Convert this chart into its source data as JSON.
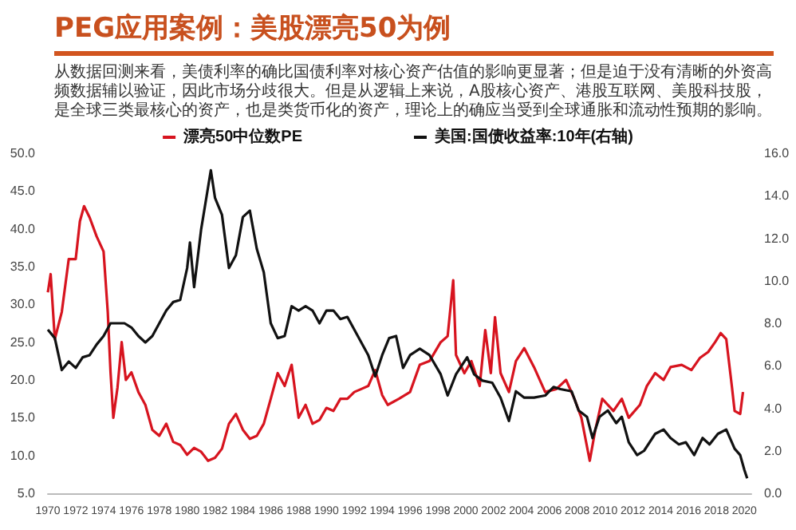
{
  "chart_data": {
    "type": "line",
    "title": "PEG应用案例：美股漂亮50为例",
    "subtitle": "从数据回测来看，美债利率的确比国债利率对核心资产估值的影响更显著；但是迫于没有清晰的外资高频数据辅以验证，因此市场分歧很大。但是从逻辑上来说，A股核心资产、港股互联网、美股科技股，是全球三类最核心的资产，也是类货币化的资产，理论上的确应当受到全球通胀和流动性预期的影响。",
    "legend": "top",
    "grid": false,
    "xlim": [
      1970,
      2020.5
    ],
    "xticks": [
      1970,
      1972,
      1974,
      1976,
      1978,
      1980,
      1982,
      1984,
      1986,
      1988,
      1990,
      1992,
      1994,
      1996,
      1998,
      2000,
      2002,
      2004,
      2006,
      2008,
      2010,
      2012,
      2014,
      2016,
      2018,
      2020
    ],
    "ylim": [
      5,
      50
    ],
    "yticks": [
      {
        "value": 5,
        "label": "5.0"
      },
      {
        "value": 10,
        "label": "10.0"
      },
      {
        "value": 15,
        "label": "15.0"
      },
      {
        "value": 20,
        "label": "20.0"
      },
      {
        "value": 25,
        "label": "25.0"
      },
      {
        "value": 30,
        "label": "30.0"
      },
      {
        "value": 35,
        "label": "35.0"
      },
      {
        "value": 40,
        "label": "40.0"
      },
      {
        "value": 45,
        "label": "45.0"
      },
      {
        "value": 50,
        "label": "50.0"
      }
    ],
    "y2lim": [
      0,
      16
    ],
    "y2ticks": [
      {
        "value": 0,
        "label": "0.0"
      },
      {
        "value": 2,
        "label": "2.0"
      },
      {
        "value": 4,
        "label": "4.0"
      },
      {
        "value": 6,
        "label": "6.0"
      },
      {
        "value": 8,
        "label": "8.0"
      },
      {
        "value": 10,
        "label": "10.0"
      },
      {
        "value": 12,
        "label": "12.0"
      },
      {
        "value": 14,
        "label": "14.0"
      },
      {
        "value": 16,
        "label": "16.0"
      }
    ],
    "series": [
      {
        "name": "漂亮50中位数PE",
        "color": "#d7141f",
        "x": [
          1970,
          1970.2,
          1970.5,
          1971,
          1971.5,
          1972,
          1972.3,
          1972.6,
          1973,
          1973.5,
          1974,
          1974.3,
          1974.5,
          1974.7,
          1975,
          1975.3,
          1975.6,
          1976,
          1976.5,
          1977,
          1977.5,
          1978,
          1978.5,
          1979,
          1979.5,
          1980,
          1980.5,
          1981,
          1981.5,
          1982,
          1982.5,
          1983,
          1983.5,
          1984,
          1984.5,
          1985,
          1985.5,
          1986,
          1986.5,
          1987,
          1987.5,
          1988,
          1988.5,
          1989,
          1989.5,
          1990,
          1990.5,
          1991,
          1991.5,
          1992,
          1992.5,
          1993,
          1993.5,
          1994,
          1994.4,
          1995.2,
          1996,
          1996.7,
          1997.4,
          1998.2,
          1998.7,
          1999.1,
          1999.3,
          1999.9,
          2000.4,
          2001,
          2001.4,
          2001.8,
          2002.1,
          2002.5,
          2003.1,
          2003.6,
          2004.2,
          2004.9,
          2005.7,
          2006.5,
          2007.2,
          2007.8,
          2008.3,
          2008.9,
          2009.3,
          2009.8,
          2010.6,
          2011.2,
          2011.7,
          2012.5,
          2013,
          2013.6,
          2014.2,
          2014.7,
          2015.5,
          2016.2,
          2016.8,
          2017.4,
          2017.9,
          2018.3,
          2018.7,
          2019.1,
          2019.3,
          2019.7,
          2019.9
        ],
        "values": [
          31.6,
          34,
          25.4,
          29,
          36,
          36,
          41,
          43,
          41.5,
          39,
          37,
          29,
          21,
          15,
          19,
          25,
          20,
          21,
          18.4,
          16.7,
          13.4,
          12.6,
          14.2,
          11.8,
          11.4,
          10.1,
          11,
          10.5,
          9.3,
          9.7,
          10.9,
          14.2,
          15.5,
          13.4,
          12.2,
          12.6,
          14.2,
          17.5,
          20.9,
          19.2,
          22,
          15,
          16.7,
          14.2,
          14.7,
          16.3,
          15.9,
          17.5,
          17.5,
          18.4,
          18.8,
          19.2,
          21.3,
          18,
          16.7,
          17.5,
          18.4,
          22,
          22.5,
          25,
          25.8,
          33.2,
          23.3,
          20.9,
          22.5,
          19.2,
          26.6,
          20.9,
          28.3,
          20.9,
          18.4,
          22.5,
          24.2,
          21.7,
          18.4,
          18.8,
          20,
          17.5,
          15,
          9.3,
          13.4,
          17.5,
          15.9,
          17.5,
          15,
          16.7,
          19.2,
          20.9,
          20,
          21.7,
          22,
          21.3,
          22.9,
          23.7,
          25,
          26.2,
          25.4,
          19.2,
          15.9,
          15.5,
          18.4
        ]
      },
      {
        "name": "美国:国债收益率:10年(右轴)",
        "color": "#111111",
        "axis": "y2",
        "x": [
          1970,
          1970.5,
          1971,
          1971.5,
          1972,
          1972.5,
          1973,
          1973.5,
          1974,
          1974.5,
          1975,
          1975.5,
          1976,
          1976.5,
          1977,
          1977.5,
          1978,
          1978.5,
          1979,
          1979.5,
          1980,
          1980.2,
          1980.5,
          1981,
          1981.7,
          1982,
          1982.5,
          1983,
          1983.5,
          1984,
          1984.5,
          1985,
          1985.5,
          1986,
          1986.5,
          1987,
          1987.5,
          1988,
          1988.5,
          1989,
          1989.5,
          1990,
          1990.5,
          1991,
          1991.5,
          1992,
          1992.5,
          1993,
          1993.5,
          1994,
          1994.5,
          1995,
          1995.5,
          1996,
          1996.7,
          1997.4,
          1998.2,
          1998.7,
          1999.3,
          2000.1,
          2000.6,
          2001.2,
          2001.9,
          2002.5,
          2003.1,
          2003.6,
          2004.2,
          2004.9,
          2005.7,
          2006.3,
          2006.8,
          2007.6,
          2008.1,
          2008.7,
          2009.1,
          2009.6,
          2010.2,
          2010.8,
          2011.2,
          2011.7,
          2012.3,
          2012.8,
          2013.6,
          2014.2,
          2014.7,
          2015.3,
          2015.8,
          2016.4,
          2017,
          2017.5,
          2018.1,
          2018.7,
          2019.3,
          2019.7,
          2020,
          2020.2
        ],
        "values": [
          7.7,
          7.3,
          5.8,
          6.2,
          5.9,
          6.4,
          6.5,
          7,
          7.4,
          8,
          8,
          8,
          7.8,
          7.4,
          7.1,
          7.4,
          8,
          8.6,
          9,
          9.1,
          10.6,
          11.8,
          9.7,
          12.4,
          15.2,
          13.9,
          13.1,
          10.6,
          11.2,
          13,
          13.3,
          11.5,
          10.4,
          8,
          7.3,
          7.4,
          8.8,
          8.6,
          8.8,
          8.6,
          8,
          8.6,
          8.6,
          8.2,
          8.3,
          7.7,
          7.1,
          6.5,
          5.5,
          6.5,
          7.3,
          7.4,
          5.9,
          6.5,
          6.8,
          6.5,
          5.6,
          4.6,
          5.6,
          6.4,
          5.6,
          5.3,
          5.2,
          4.5,
          3.4,
          4.8,
          4.5,
          4.5,
          4.6,
          5,
          4.9,
          4.8,
          3.9,
          3.6,
          2.6,
          3.6,
          3.9,
          3.3,
          3.6,
          2.4,
          1.8,
          2,
          2.8,
          3,
          2.6,
          2.3,
          2.4,
          1.8,
          2.6,
          2.3,
          2.8,
          3,
          2.1,
          1.8,
          1.1,
          0.7
        ]
      }
    ]
  }
}
